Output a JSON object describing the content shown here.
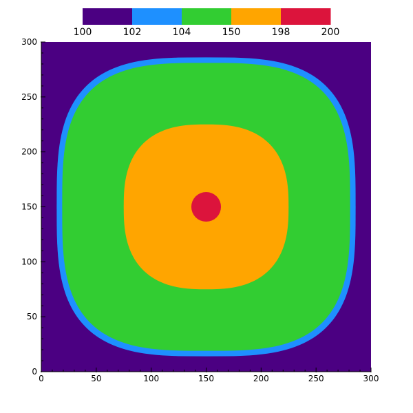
{
  "chart_data": {
    "type": "heatmap",
    "title": "",
    "xlabel": "",
    "ylabel": "",
    "xlim": [
      0,
      300
    ],
    "ylim": [
      0,
      300
    ],
    "x_ticks": [
      "0",
      "50",
      "100",
      "150",
      "200",
      "250",
      "300"
    ],
    "y_ticks": [
      "0",
      "50",
      "100",
      "150",
      "200",
      "250",
      "300"
    ],
    "colorbar": {
      "placement": "top",
      "levels": [
        "100",
        "102",
        "104",
        "150",
        "198",
        "200"
      ],
      "colors": [
        "#4b0082",
        "#1e90ff",
        "#32cd32",
        "#ffa500",
        "#dc143c"
      ]
    },
    "regions": [
      {
        "range": [
          100,
          102
        ],
        "color": "#4b0082",
        "shape": "background"
      },
      {
        "range": [
          102,
          104
        ],
        "color": "#1e90ff",
        "shape": "superellipse",
        "center": [
          150,
          150
        ],
        "half_width": 136,
        "half_height": 136
      },
      {
        "range": [
          104,
          150
        ],
        "color": "#32cd32",
        "shape": "superellipse",
        "center": [
          150,
          150
        ],
        "half_width": 131,
        "half_height": 131
      },
      {
        "range": [
          150,
          198
        ],
        "color": "#ffa500",
        "shape": "superellipse",
        "center": [
          150,
          150
        ],
        "half_width": 75,
        "half_height": 75
      },
      {
        "range": [
          198,
          200
        ],
        "color": "#dc143c",
        "shape": "circle",
        "center": [
          150,
          150
        ],
        "radius": 13.5
      }
    ]
  }
}
